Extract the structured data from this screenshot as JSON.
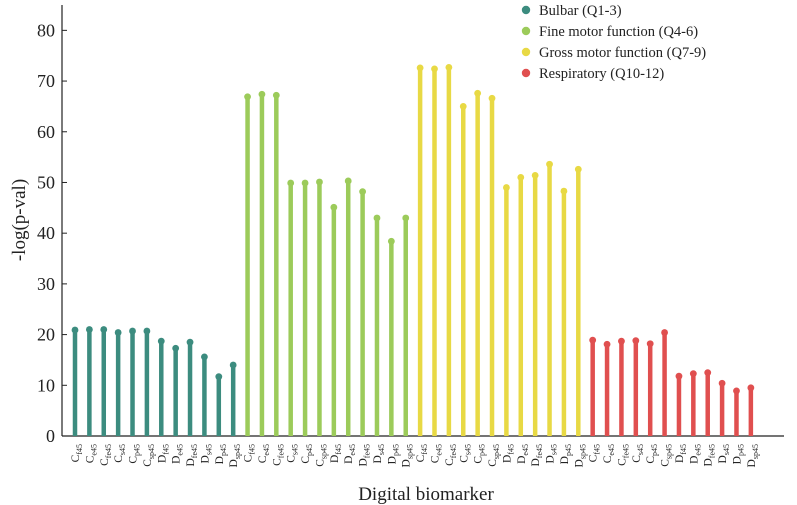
{
  "chart_data": {
    "type": "bar",
    "title": "",
    "xlabel": "Digital biomarker",
    "ylabel": "-log(p-val)",
    "ylim": [
      0,
      85
    ],
    "yticks": [
      0,
      10,
      20,
      30,
      40,
      50,
      60,
      70,
      80
    ],
    "grid": false,
    "legend_position": "top-right",
    "series": [
      {
        "name": "Bulbar (Q1-3)",
        "color": "#3c8c7f",
        "categories": [
          {
            "base": "C",
            "sub": "f45"
          },
          {
            "base": "C",
            "sub": "e45"
          },
          {
            "base": "C",
            "sub": "fe45"
          },
          {
            "base": "C",
            "sub": "s45"
          },
          {
            "base": "C",
            "sub": "p45"
          },
          {
            "base": "C",
            "sub": "sp45"
          },
          {
            "base": "D",
            "sub": "f45"
          },
          {
            "base": "D",
            "sub": "e45"
          },
          {
            "base": "D",
            "sub": "fe45"
          },
          {
            "base": "D",
            "sub": "s45"
          },
          {
            "base": "D",
            "sub": "p45"
          },
          {
            "base": "D",
            "sub": "sp45"
          }
        ],
        "values": [
          20.9,
          21.0,
          21.0,
          20.4,
          20.7,
          20.7,
          18.7,
          17.3,
          18.5,
          15.6,
          11.7,
          14.0
        ]
      },
      {
        "name": "Fine motor function (Q4-6)",
        "color": "#9ccb5a",
        "categories": [
          {
            "base": "C",
            "sub": "f45"
          },
          {
            "base": "C",
            "sub": "e45"
          },
          {
            "base": "C",
            "sub": "fe45"
          },
          {
            "base": "C",
            "sub": "s45"
          },
          {
            "base": "C",
            "sub": "p45"
          },
          {
            "base": "C",
            "sub": "sp45"
          },
          {
            "base": "D",
            "sub": "f45"
          },
          {
            "base": "D",
            "sub": "e45"
          },
          {
            "base": "D",
            "sub": "fe45"
          },
          {
            "base": "D",
            "sub": "s45"
          },
          {
            "base": "D",
            "sub": "p45"
          },
          {
            "base": "D",
            "sub": "sp45"
          }
        ],
        "values": [
          66.9,
          67.4,
          67.2,
          49.9,
          49.9,
          50.1,
          45.1,
          50.3,
          48.2,
          43.0,
          38.4,
          43.0
        ]
      },
      {
        "name": "Gross motor function (Q7-9)",
        "color": "#e8d944",
        "categories": [
          {
            "base": "C",
            "sub": "f45"
          },
          {
            "base": "C",
            "sub": "e45"
          },
          {
            "base": "C",
            "sub": "fe45"
          },
          {
            "base": "C",
            "sub": "s45"
          },
          {
            "base": "C",
            "sub": "p45"
          },
          {
            "base": "C",
            "sub": "sp45"
          },
          {
            "base": "D",
            "sub": "f45"
          },
          {
            "base": "D",
            "sub": "e45"
          },
          {
            "base": "D",
            "sub": "fe45"
          },
          {
            "base": "D",
            "sub": "s45"
          },
          {
            "base": "D",
            "sub": "p45"
          },
          {
            "base": "D",
            "sub": "sp45"
          }
        ],
        "values": [
          72.6,
          72.4,
          72.7,
          65.0,
          67.6,
          66.6,
          49.0,
          51.0,
          51.4,
          53.6,
          48.3,
          52.6
        ]
      },
      {
        "name": "Respiratory (Q10-12)",
        "color": "#e04f4f",
        "categories": [
          {
            "base": "C",
            "sub": "f45"
          },
          {
            "base": "C",
            "sub": "e45"
          },
          {
            "base": "C",
            "sub": "fe45"
          },
          {
            "base": "C",
            "sub": "s45"
          },
          {
            "base": "C",
            "sub": "p45"
          },
          {
            "base": "C",
            "sub": "sp45"
          },
          {
            "base": "D",
            "sub": "f45"
          },
          {
            "base": "D",
            "sub": "e45"
          },
          {
            "base": "D",
            "sub": "fe45"
          },
          {
            "base": "D",
            "sub": "s45"
          },
          {
            "base": "D",
            "sub": "p45"
          },
          {
            "base": "D",
            "sub": "sp45"
          }
        ],
        "values": [
          18.9,
          18.1,
          18.7,
          18.8,
          18.2,
          20.4,
          11.8,
          12.3,
          12.5,
          10.4,
          8.9,
          9.5
        ]
      }
    ]
  }
}
